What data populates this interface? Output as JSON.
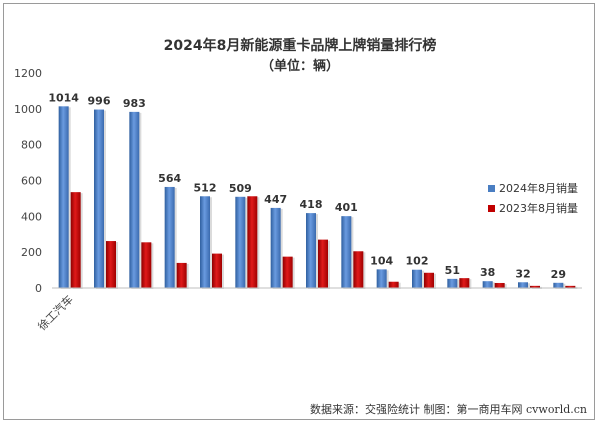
{
  "chart_data": {
    "type": "bar",
    "title": "2024年8月新能源重卡品牌上牌销量排行榜",
    "subtitle": "（单位：辆）",
    "categories": [
      "徐工汽车",
      "",
      "",
      "",
      "",
      "",
      "",
      "",
      "",
      "",
      "",
      "",
      "",
      "",
      ""
    ],
    "series": [
      {
        "name": "2024年8月销量",
        "values": [
          1014,
          996,
          983,
          564,
          512,
          509,
          447,
          418,
          401,
          104,
          102,
          51,
          38,
          32,
          29
        ]
      },
      {
        "name": "2023年8月销量",
        "values": [
          535,
          262,
          255,
          140,
          192,
          512,
          175,
          270,
          205,
          35,
          85,
          55,
          28,
          12,
          12
        ]
      }
    ],
    "data_labels_series": 0,
    "ylim": [
      0,
      1200
    ],
    "yticks": [
      0,
      200,
      400,
      600,
      800,
      1000,
      1200
    ],
    "grid": false,
    "legend_position": "right",
    "colors": {
      "series_2024": "#4a7ec2",
      "series_2023": "#c00000"
    },
    "source": "数据来源：交强险统计  制图：第一商用车网 cvworld.cn"
  }
}
